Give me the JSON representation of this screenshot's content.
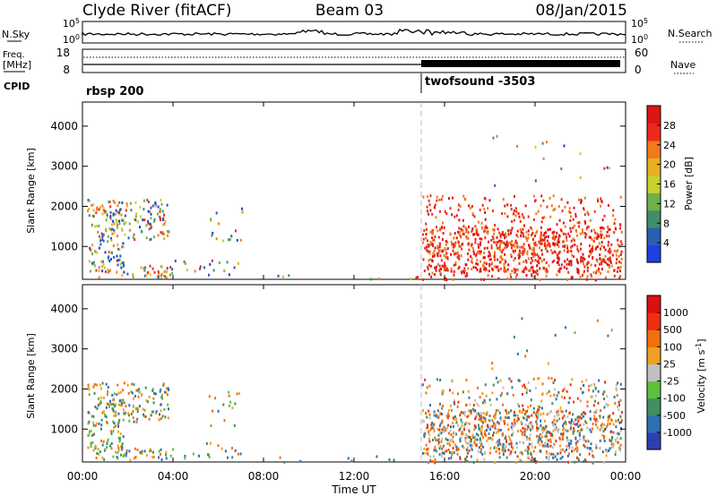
{
  "header": {
    "station": "Clyde River (fitACF)",
    "beam": "Beam 03",
    "date": "08/Jan/2015"
  },
  "noise_panel": {
    "left_label": "N.Sky",
    "right_label": "N.Search",
    "left_ticks": [
      "10^5",
      "10^0"
    ],
    "right_ticks": [
      "10^5",
      "10^0"
    ]
  },
  "freq_panel": {
    "left_label_1": "Freq.",
    "left_label_2": "[MHz]",
    "right_label": "Nave",
    "left_ticks": [
      "18",
      "8"
    ],
    "right_ticks": [
      "60",
      "0"
    ]
  },
  "cpid": {
    "label": "CPID",
    "segments": [
      {
        "name": "rbsp 200",
        "start_hour": 0
      },
      {
        "name": "twofsound -3503",
        "start_hour": 15
      }
    ]
  },
  "time_axis": {
    "label": "Time UT",
    "ticks": [
      "00:00",
      "04:00",
      "08:00",
      "12:00",
      "16:00",
      "20:00",
      "00:00"
    ]
  },
  "chart_data": [
    {
      "type": "heatmap",
      "name": "power",
      "xlabel": "Time UT",
      "ylabel": "Slant Range [km]",
      "yticks": [
        "1000",
        "2000",
        "3000",
        "4000"
      ],
      "xlim": [
        0,
        24
      ],
      "ylim": [
        180,
        4600
      ],
      "colorbar_label": "Power [dB]",
      "colorbar_ticks": [
        "4",
        "8",
        "12",
        "16",
        "20",
        "24",
        "28"
      ],
      "colorbar_range": [
        0,
        32
      ],
      "colorbar_colors": [
        "#1f3fe0",
        "#2a5fb5",
        "#3f8f6a",
        "#6fb04a",
        "#c8d030",
        "#e8b020",
        "#f07a1e",
        "#ee2a1c",
        "#dd1515"
      ]
    },
    {
      "type": "heatmap",
      "name": "velocity",
      "xlabel": "Time UT",
      "ylabel": "Slant Range [km]",
      "yticks": [
        "1000",
        "2000",
        "3000",
        "4000"
      ],
      "xlim": [
        0,
        24
      ],
      "ylim": [
        180,
        4600
      ],
      "colorbar_label": "Velocity [m s^-1]",
      "colorbar_ticks": [
        "1000",
        "500",
        "100",
        "25",
        "-25",
        "-100",
        "-500",
        "-1000"
      ],
      "colorbar_colors": [
        "#2d3fb0",
        "#2f6fb0",
        "#3f8f60",
        "#5fbf3a",
        "#c0c0c0",
        "#f0a020",
        "#f07010",
        "#ee3010",
        "#dd1010"
      ]
    }
  ]
}
